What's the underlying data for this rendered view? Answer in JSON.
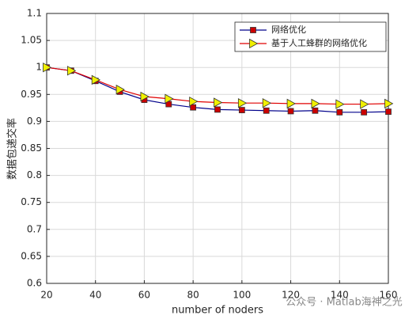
{
  "chart_data": {
    "type": "line",
    "x": [
      20,
      30,
      40,
      50,
      60,
      70,
      80,
      90,
      100,
      110,
      120,
      130,
      140,
      150,
      160
    ],
    "xlabel": "number of noders",
    "ylabel": "数据包递交率",
    "series": [
      {
        "name": "网络优化",
        "color": "#00008b",
        "marker": "square",
        "marker_color": "#cc0000",
        "values": [
          1.0,
          0.994,
          0.975,
          0.955,
          0.94,
          0.932,
          0.926,
          0.922,
          0.921,
          0.92,
          0.919,
          0.92,
          0.917,
          0.917,
          0.918
        ]
      },
      {
        "name": "基于人工蜂群的网络优化",
        "color": "#e00000",
        "marker": "triangle-right",
        "marker_color": "#f0f000",
        "values": [
          1.0,
          0.994,
          0.977,
          0.959,
          0.946,
          0.942,
          0.937,
          0.935,
          0.934,
          0.934,
          0.933,
          0.933,
          0.932,
          0.932,
          0.933
        ]
      }
    ],
    "xlim": [
      20,
      160
    ],
    "xticks": [
      20,
      40,
      60,
      80,
      100,
      120,
      140,
      160
    ],
    "ylim": [
      0.6,
      1.1
    ],
    "yticks": [
      0.6,
      0.65,
      0.7,
      0.75,
      0.8,
      0.85,
      0.9,
      0.95,
      1,
      1.05,
      1.1
    ],
    "grid": true,
    "legend": "upper right",
    "watermark": "公众号 · Matlab海神之光"
  }
}
